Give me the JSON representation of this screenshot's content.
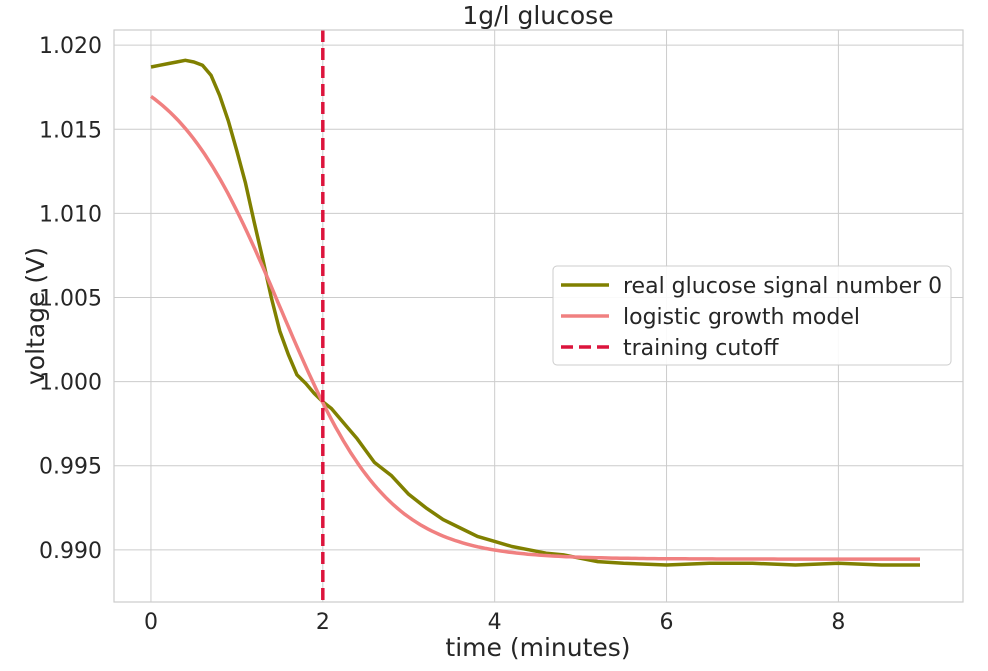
{
  "chart_data": {
    "type": "line",
    "title": "1g/l glucose",
    "xlabel": "time (minutes)",
    "ylabel": "voltage (V)",
    "xlim": [
      -0.43,
      9.45
    ],
    "ylim": [
      0.9869,
      1.0209
    ],
    "xticks": [
      0,
      2,
      4,
      6,
      8
    ],
    "xtick_labels": [
      "0",
      "2",
      "4",
      "6",
      "8"
    ],
    "yticks": [
      0.99,
      0.995,
      1.0,
      1.005,
      1.01,
      1.015,
      1.02
    ],
    "ytick_labels": [
      "0.990",
      "0.995",
      "1.000",
      "1.005",
      "1.010",
      "1.015",
      "1.020"
    ],
    "grid": true,
    "legend_position": "right",
    "series": [
      {
        "name": "real glucose signal number 0",
        "color": "#808000",
        "style": "solid",
        "x": [
          0,
          0.1,
          0.2,
          0.3,
          0.4,
          0.5,
          0.6,
          0.7,
          0.8,
          0.9,
          1.0,
          1.1,
          1.2,
          1.3,
          1.4,
          1.5,
          1.6,
          1.7,
          1.8,
          1.9,
          2.0,
          2.1,
          2.2,
          2.3,
          2.4,
          2.5,
          2.6,
          2.8,
          3.0,
          3.2,
          3.4,
          3.6,
          3.8,
          4.0,
          4.2,
          4.4,
          4.6,
          4.8,
          5.0,
          5.2,
          5.5,
          6.0,
          6.5,
          7.0,
          7.5,
          8.0,
          8.5,
          8.95
        ],
        "y": [
          1.0187,
          1.0188,
          1.0189,
          1.019,
          1.0191,
          1.019,
          1.0188,
          1.0182,
          1.017,
          1.0155,
          1.0137,
          1.0118,
          1.0095,
          1.0073,
          1.005,
          1.003,
          1.0016,
          1.0004,
          0.9999,
          0.9993,
          0.9988,
          0.9984,
          0.9978,
          0.9972,
          0.9966,
          0.9959,
          0.9952,
          0.9944,
          0.9933,
          0.9925,
          0.9918,
          0.9913,
          0.9908,
          0.9905,
          0.9902,
          0.99,
          0.9898,
          0.9897,
          0.9895,
          0.9893,
          0.9892,
          0.9891,
          0.9892,
          0.9892,
          0.9891,
          0.9892,
          0.9891,
          0.9891
        ]
      },
      {
        "name": "logistic growth model",
        "color": "#f08080",
        "style": "solid",
        "function": {
          "y_min": 0.98945,
          "amplitude": 0.03,
          "midpoint": 1.5,
          "steepness": 1.6
        },
        "x_range": [
          0,
          8.95
        ]
      },
      {
        "name": "training cutoff",
        "color": "#dc143c",
        "style": "dashed",
        "x_vertical": 2
      }
    ]
  }
}
